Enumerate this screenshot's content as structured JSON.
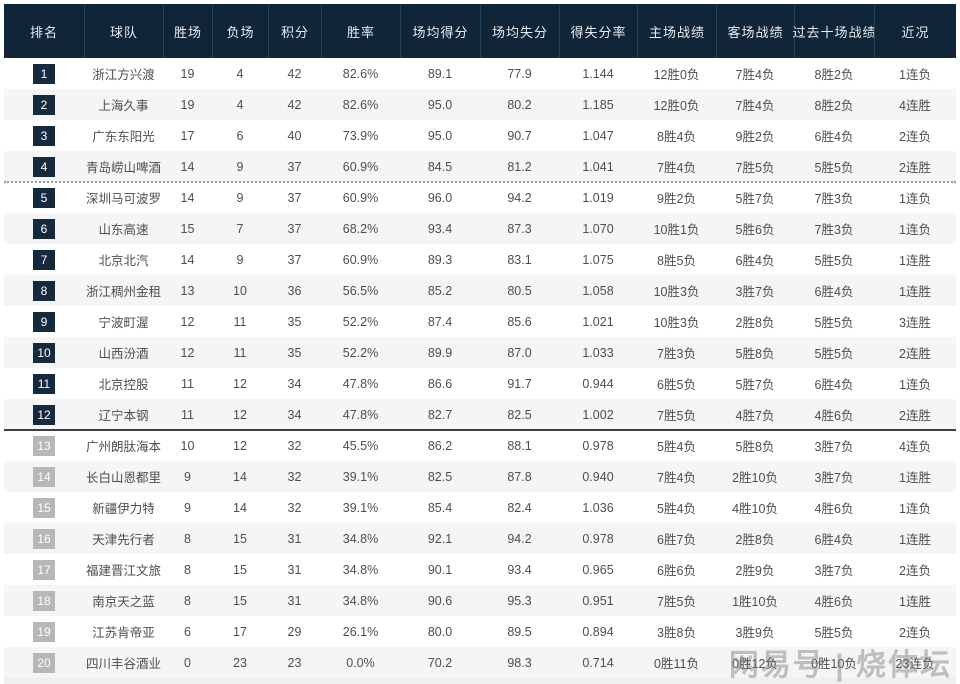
{
  "table": {
    "columns": [
      {
        "key": "rank",
        "label": "排名"
      },
      {
        "key": "team",
        "label": "球队"
      },
      {
        "key": "wins",
        "label": "胜场"
      },
      {
        "key": "losses",
        "label": "负场"
      },
      {
        "key": "points",
        "label": "积分"
      },
      {
        "key": "win_rate",
        "label": "胜率"
      },
      {
        "key": "avg_scored",
        "label": "场均得分"
      },
      {
        "key": "avg_allowed",
        "label": "场均失分"
      },
      {
        "key": "ratio",
        "label": "得失分率"
      },
      {
        "key": "home",
        "label": "主场战绩"
      },
      {
        "key": "away",
        "label": "客场战绩"
      },
      {
        "key": "last10",
        "label": "过去十场战绩"
      },
      {
        "key": "streak",
        "label": "近况"
      }
    ],
    "rows": [
      {
        "rank": "1",
        "team": "浙江方兴渡",
        "wins": "19",
        "losses": "4",
        "points": "42",
        "win_rate": "82.6%",
        "avg_scored": "89.1",
        "avg_allowed": "77.9",
        "ratio": "1.144",
        "home": "12胜0负",
        "away": "7胜4负",
        "last10": "8胜2负",
        "streak": "1连负"
      },
      {
        "rank": "2",
        "team": "上海久事",
        "wins": "19",
        "losses": "4",
        "points": "42",
        "win_rate": "82.6%",
        "avg_scored": "95.0",
        "avg_allowed": "80.2",
        "ratio": "1.185",
        "home": "12胜0负",
        "away": "7胜4负",
        "last10": "8胜2负",
        "streak": "4连胜"
      },
      {
        "rank": "3",
        "team": "广东东阳光",
        "wins": "17",
        "losses": "6",
        "points": "40",
        "win_rate": "73.9%",
        "avg_scored": "95.0",
        "avg_allowed": "90.7",
        "ratio": "1.047",
        "home": "8胜4负",
        "away": "9胜2负",
        "last10": "6胜4负",
        "streak": "2连负"
      },
      {
        "rank": "4",
        "team": "青岛崂山啤酒",
        "wins": "14",
        "losses": "9",
        "points": "37",
        "win_rate": "60.9%",
        "avg_scored": "84.5",
        "avg_allowed": "81.2",
        "ratio": "1.041",
        "home": "7胜4负",
        "away": "7胜5负",
        "last10": "5胜5负",
        "streak": "2连胜"
      },
      {
        "rank": "5",
        "team": "深圳马可波罗",
        "wins": "14",
        "losses": "9",
        "points": "37",
        "win_rate": "60.9%",
        "avg_scored": "96.0",
        "avg_allowed": "94.2",
        "ratio": "1.019",
        "home": "9胜2负",
        "away": "5胜7负",
        "last10": "7胜3负",
        "streak": "1连负"
      },
      {
        "rank": "6",
        "team": "山东高速",
        "wins": "15",
        "losses": "7",
        "points": "37",
        "win_rate": "68.2%",
        "avg_scored": "93.4",
        "avg_allowed": "87.3",
        "ratio": "1.070",
        "home": "10胜1负",
        "away": "5胜6负",
        "last10": "7胜3负",
        "streak": "1连负"
      },
      {
        "rank": "7",
        "team": "北京北汽",
        "wins": "14",
        "losses": "9",
        "points": "37",
        "win_rate": "60.9%",
        "avg_scored": "89.3",
        "avg_allowed": "83.1",
        "ratio": "1.075",
        "home": "8胜5负",
        "away": "6胜4负",
        "last10": "5胜5负",
        "streak": "1连胜"
      },
      {
        "rank": "8",
        "team": "浙江稠州金租",
        "wins": "13",
        "losses": "10",
        "points": "36",
        "win_rate": "56.5%",
        "avg_scored": "85.2",
        "avg_allowed": "80.5",
        "ratio": "1.058",
        "home": "10胜3负",
        "away": "3胜7负",
        "last10": "6胜4负",
        "streak": "1连胜"
      },
      {
        "rank": "9",
        "team": "宁波町渥",
        "wins": "12",
        "losses": "11",
        "points": "35",
        "win_rate": "52.2%",
        "avg_scored": "87.4",
        "avg_allowed": "85.6",
        "ratio": "1.021",
        "home": "10胜3负",
        "away": "2胜8负",
        "last10": "5胜5负",
        "streak": "3连胜"
      },
      {
        "rank": "10",
        "team": "山西汾酒",
        "wins": "12",
        "losses": "11",
        "points": "35",
        "win_rate": "52.2%",
        "avg_scored": "89.9",
        "avg_allowed": "87.0",
        "ratio": "1.033",
        "home": "7胜3负",
        "away": "5胜8负",
        "last10": "5胜5负",
        "streak": "2连胜"
      },
      {
        "rank": "11",
        "team": "北京控股",
        "wins": "11",
        "losses": "12",
        "points": "34",
        "win_rate": "47.8%",
        "avg_scored": "86.6",
        "avg_allowed": "91.7",
        "ratio": "0.944",
        "home": "6胜5负",
        "away": "5胜7负",
        "last10": "6胜4负",
        "streak": "1连负"
      },
      {
        "rank": "12",
        "team": "辽宁本钢",
        "wins": "11",
        "losses": "12",
        "points": "34",
        "win_rate": "47.8%",
        "avg_scored": "82.7",
        "avg_allowed": "82.5",
        "ratio": "1.002",
        "home": "7胜5负",
        "away": "4胜7负",
        "last10": "4胜6负",
        "streak": "2连胜"
      },
      {
        "rank": "13",
        "team": "广州朗肽海本",
        "wins": "10",
        "losses": "12",
        "points": "32",
        "win_rate": "45.5%",
        "avg_scored": "86.2",
        "avg_allowed": "88.1",
        "ratio": "0.978",
        "home": "5胜4负",
        "away": "5胜8负",
        "last10": "3胜7负",
        "streak": "4连负"
      },
      {
        "rank": "14",
        "team": "长白山恩都里",
        "wins": "9",
        "losses": "14",
        "points": "32",
        "win_rate": "39.1%",
        "avg_scored": "82.5",
        "avg_allowed": "87.8",
        "ratio": "0.940",
        "home": "7胜4负",
        "away": "2胜10负",
        "last10": "3胜7负",
        "streak": "1连胜"
      },
      {
        "rank": "15",
        "team": "新疆伊力特",
        "wins": "9",
        "losses": "14",
        "points": "32",
        "win_rate": "39.1%",
        "avg_scored": "85.4",
        "avg_allowed": "82.4",
        "ratio": "1.036",
        "home": "5胜4负",
        "away": "4胜10负",
        "last10": "4胜6负",
        "streak": "1连负"
      },
      {
        "rank": "16",
        "team": "天津先行者",
        "wins": "8",
        "losses": "15",
        "points": "31",
        "win_rate": "34.8%",
        "avg_scored": "92.1",
        "avg_allowed": "94.2",
        "ratio": "0.978",
        "home": "6胜7负",
        "away": "2胜8负",
        "last10": "6胜4负",
        "streak": "1连胜"
      },
      {
        "rank": "17",
        "team": "福建晋江文旅",
        "wins": "8",
        "losses": "15",
        "points": "31",
        "win_rate": "34.8%",
        "avg_scored": "90.1",
        "avg_allowed": "93.4",
        "ratio": "0.965",
        "home": "6胜6负",
        "away": "2胜9负",
        "last10": "3胜7负",
        "streak": "2连负"
      },
      {
        "rank": "18",
        "team": "南京天之蓝",
        "wins": "8",
        "losses": "15",
        "points": "31",
        "win_rate": "34.8%",
        "avg_scored": "90.6",
        "avg_allowed": "95.3",
        "ratio": "0.951",
        "home": "7胜5负",
        "away": "1胜10负",
        "last10": "4胜6负",
        "streak": "1连胜"
      },
      {
        "rank": "19",
        "team": "江苏肯帝亚",
        "wins": "6",
        "losses": "17",
        "points": "29",
        "win_rate": "26.1%",
        "avg_scored": "80.0",
        "avg_allowed": "89.5",
        "ratio": "0.894",
        "home": "3胜8负",
        "away": "3胜9负",
        "last10": "5胜5负",
        "streak": "2连负"
      },
      {
        "rank": "20",
        "team": "四川丰谷酒业",
        "wins": "0",
        "losses": "23",
        "points": "23",
        "win_rate": "0.0%",
        "avg_scored": "70.2",
        "avg_allowed": "98.3",
        "ratio": "0.714",
        "home": "0胜11负",
        "away": "0胜12负",
        "last10": "0胜10负",
        "streak": "23连负"
      }
    ],
    "dividers": {
      "dotted_after_rank": 4,
      "solid_after_rank": 12,
      "badge_dark_max_rank": 12
    }
  },
  "watermark": {
    "text": "网易号 | 烧体坛"
  },
  "colors": {
    "header_bg": "#102638",
    "header_divider": "#24425c",
    "badge_top": "#152a3e",
    "badge_bottom": "#b6b7b9",
    "stripe": "#f5f5f6",
    "body_text": "#4e4e4e",
    "header_text": "#e7ebef"
  }
}
